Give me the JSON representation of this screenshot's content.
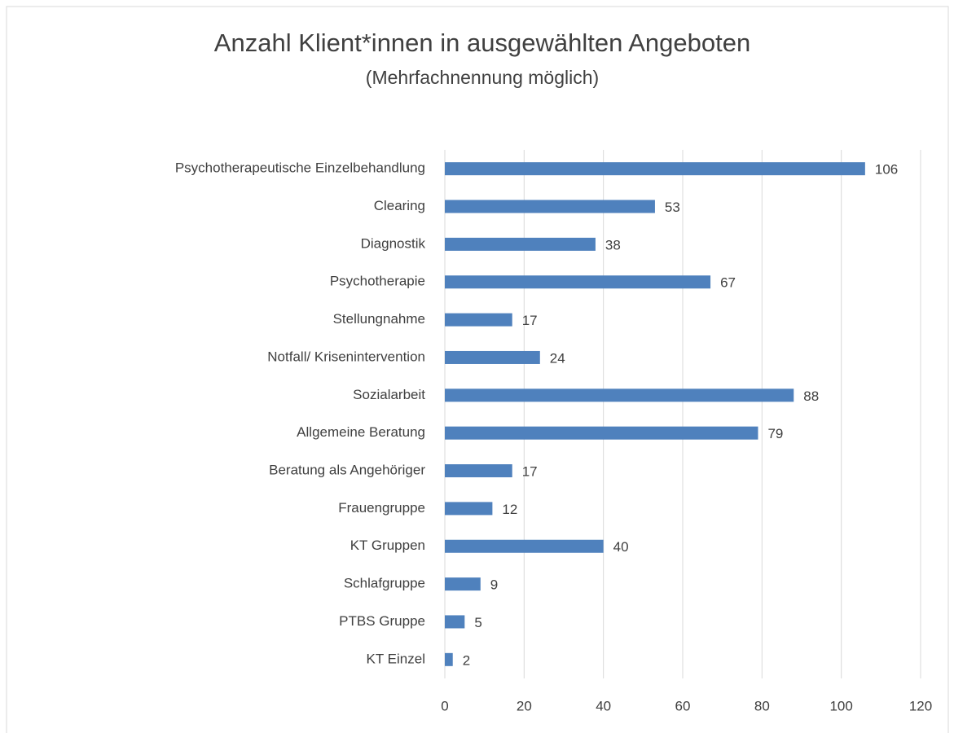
{
  "chart_data": {
    "type": "bar",
    "orientation": "horizontal",
    "title": "Anzahl Klient*innen in ausgewählten Angeboten",
    "subtitle": "(Mehrfachnennung möglich)",
    "categories": [
      "Psychotherapeutische Einzelbehandlung",
      "Clearing",
      "Diagnostik",
      "Psychotherapie",
      "Stellungnahme",
      "Notfall/ Krisenintervention",
      "Sozialarbeit",
      "Allgemeine Beratung",
      "Beratung als Angehöriger",
      "Frauengruppe",
      "KT Gruppen",
      "Schlafgruppe",
      "PTBS Gruppe",
      "KT Einzel"
    ],
    "values": [
      106,
      53,
      38,
      67,
      17,
      24,
      88,
      79,
      17,
      12,
      40,
      9,
      5,
      2
    ],
    "color": "#4f81bd",
    "xlim": [
      0,
      120
    ],
    "xticks": [
      0,
      20,
      40,
      60,
      80,
      100,
      120
    ],
    "grid": true
  }
}
